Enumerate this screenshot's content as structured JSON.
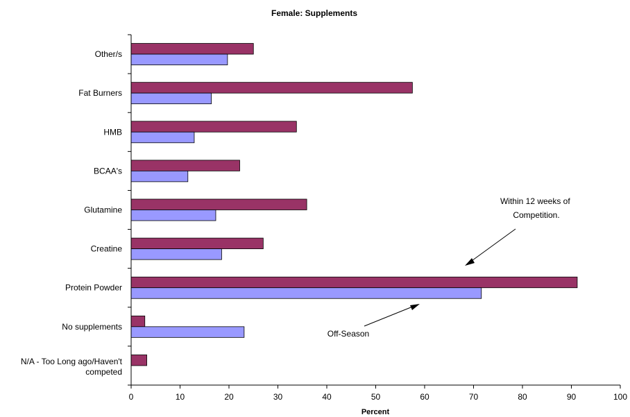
{
  "chart_data": {
    "type": "bar",
    "orientation": "horizontal",
    "title": "Female: Supplements",
    "xlabel": "Percent",
    "ylabel": "",
    "xlim": [
      0,
      100
    ],
    "xticks": [
      0,
      10,
      20,
      30,
      40,
      50,
      60,
      70,
      80,
      90,
      100
    ],
    "grid": false,
    "legend": "none",
    "categories": [
      "Other/s",
      "Fat Burners",
      "HMB",
      "BCAA's",
      "Glutamine",
      "Creatine",
      "Protein Powder",
      "No supplements",
      "N/A - Too Long ago/Haven't competed"
    ],
    "series": [
      {
        "color": "#993366",
        "values": [
          25.0,
          57.5,
          33.8,
          22.2,
          35.9,
          27.0,
          91.2,
          2.8,
          3.2
        ]
      },
      {
        "color": "#9999FF",
        "values": [
          19.7,
          16.4,
          12.9,
          11.6,
          17.3,
          18.5,
          71.6,
          23.1,
          null
        ]
      }
    ],
    "annotations": [
      {
        "text_lines": [
          "Within 12 weeks of",
          "Competition."
        ]
      },
      {
        "text_lines": [
          "Off-Season"
        ]
      }
    ]
  }
}
